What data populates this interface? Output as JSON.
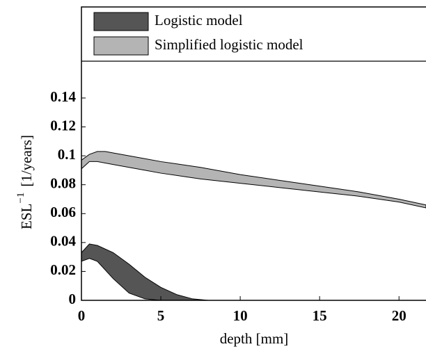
{
  "chart_data": {
    "type": "band",
    "xlabel": "depth [mm]",
    "ylabel": {
      "base": "ESL",
      "sup": "−1",
      "unit": "[1/years]"
    },
    "xlim": [
      0,
      21.7
    ],
    "ylim": [
      0,
      0.203
    ],
    "xticks": [
      0,
      5,
      10,
      15,
      20
    ],
    "yticks": [
      0,
      0.02,
      0.04,
      0.06,
      0.08,
      0.1,
      0.12,
      0.14
    ],
    "legend": "top",
    "series": [
      {
        "name": "Logistic model",
        "color": "#555555",
        "x": [
          0,
          0.5,
          1,
          2,
          3,
          4,
          5,
          6,
          7,
          8,
          8.5
        ],
        "upper": [
          0.033,
          0.039,
          0.038,
          0.033,
          0.025,
          0.016,
          0.009,
          0.004,
          0.001,
          0,
          0
        ],
        "lower": [
          0.027,
          0.029,
          0.027,
          0.015,
          0.005,
          0.001,
          0,
          0,
          0,
          0,
          0
        ]
      },
      {
        "name": "Simplified logistic model",
        "color": "#b4b4b4",
        "x": [
          0,
          0.5,
          1,
          1.5,
          2,
          3,
          4,
          5,
          7.5,
          10,
          12.5,
          15,
          17.5,
          20,
          21.7
        ],
        "upper": [
          0.097,
          0.101,
          0.103,
          0.103,
          0.102,
          0.1,
          0.098,
          0.096,
          0.092,
          0.087,
          0.083,
          0.079,
          0.075,
          0.07,
          0.066
        ],
        "lower": [
          0.091,
          0.096,
          0.096,
          0.095,
          0.094,
          0.092,
          0.09,
          0.088,
          0.084,
          0.081,
          0.078,
          0.075,
          0.072,
          0.068,
          0.064
        ]
      }
    ]
  }
}
